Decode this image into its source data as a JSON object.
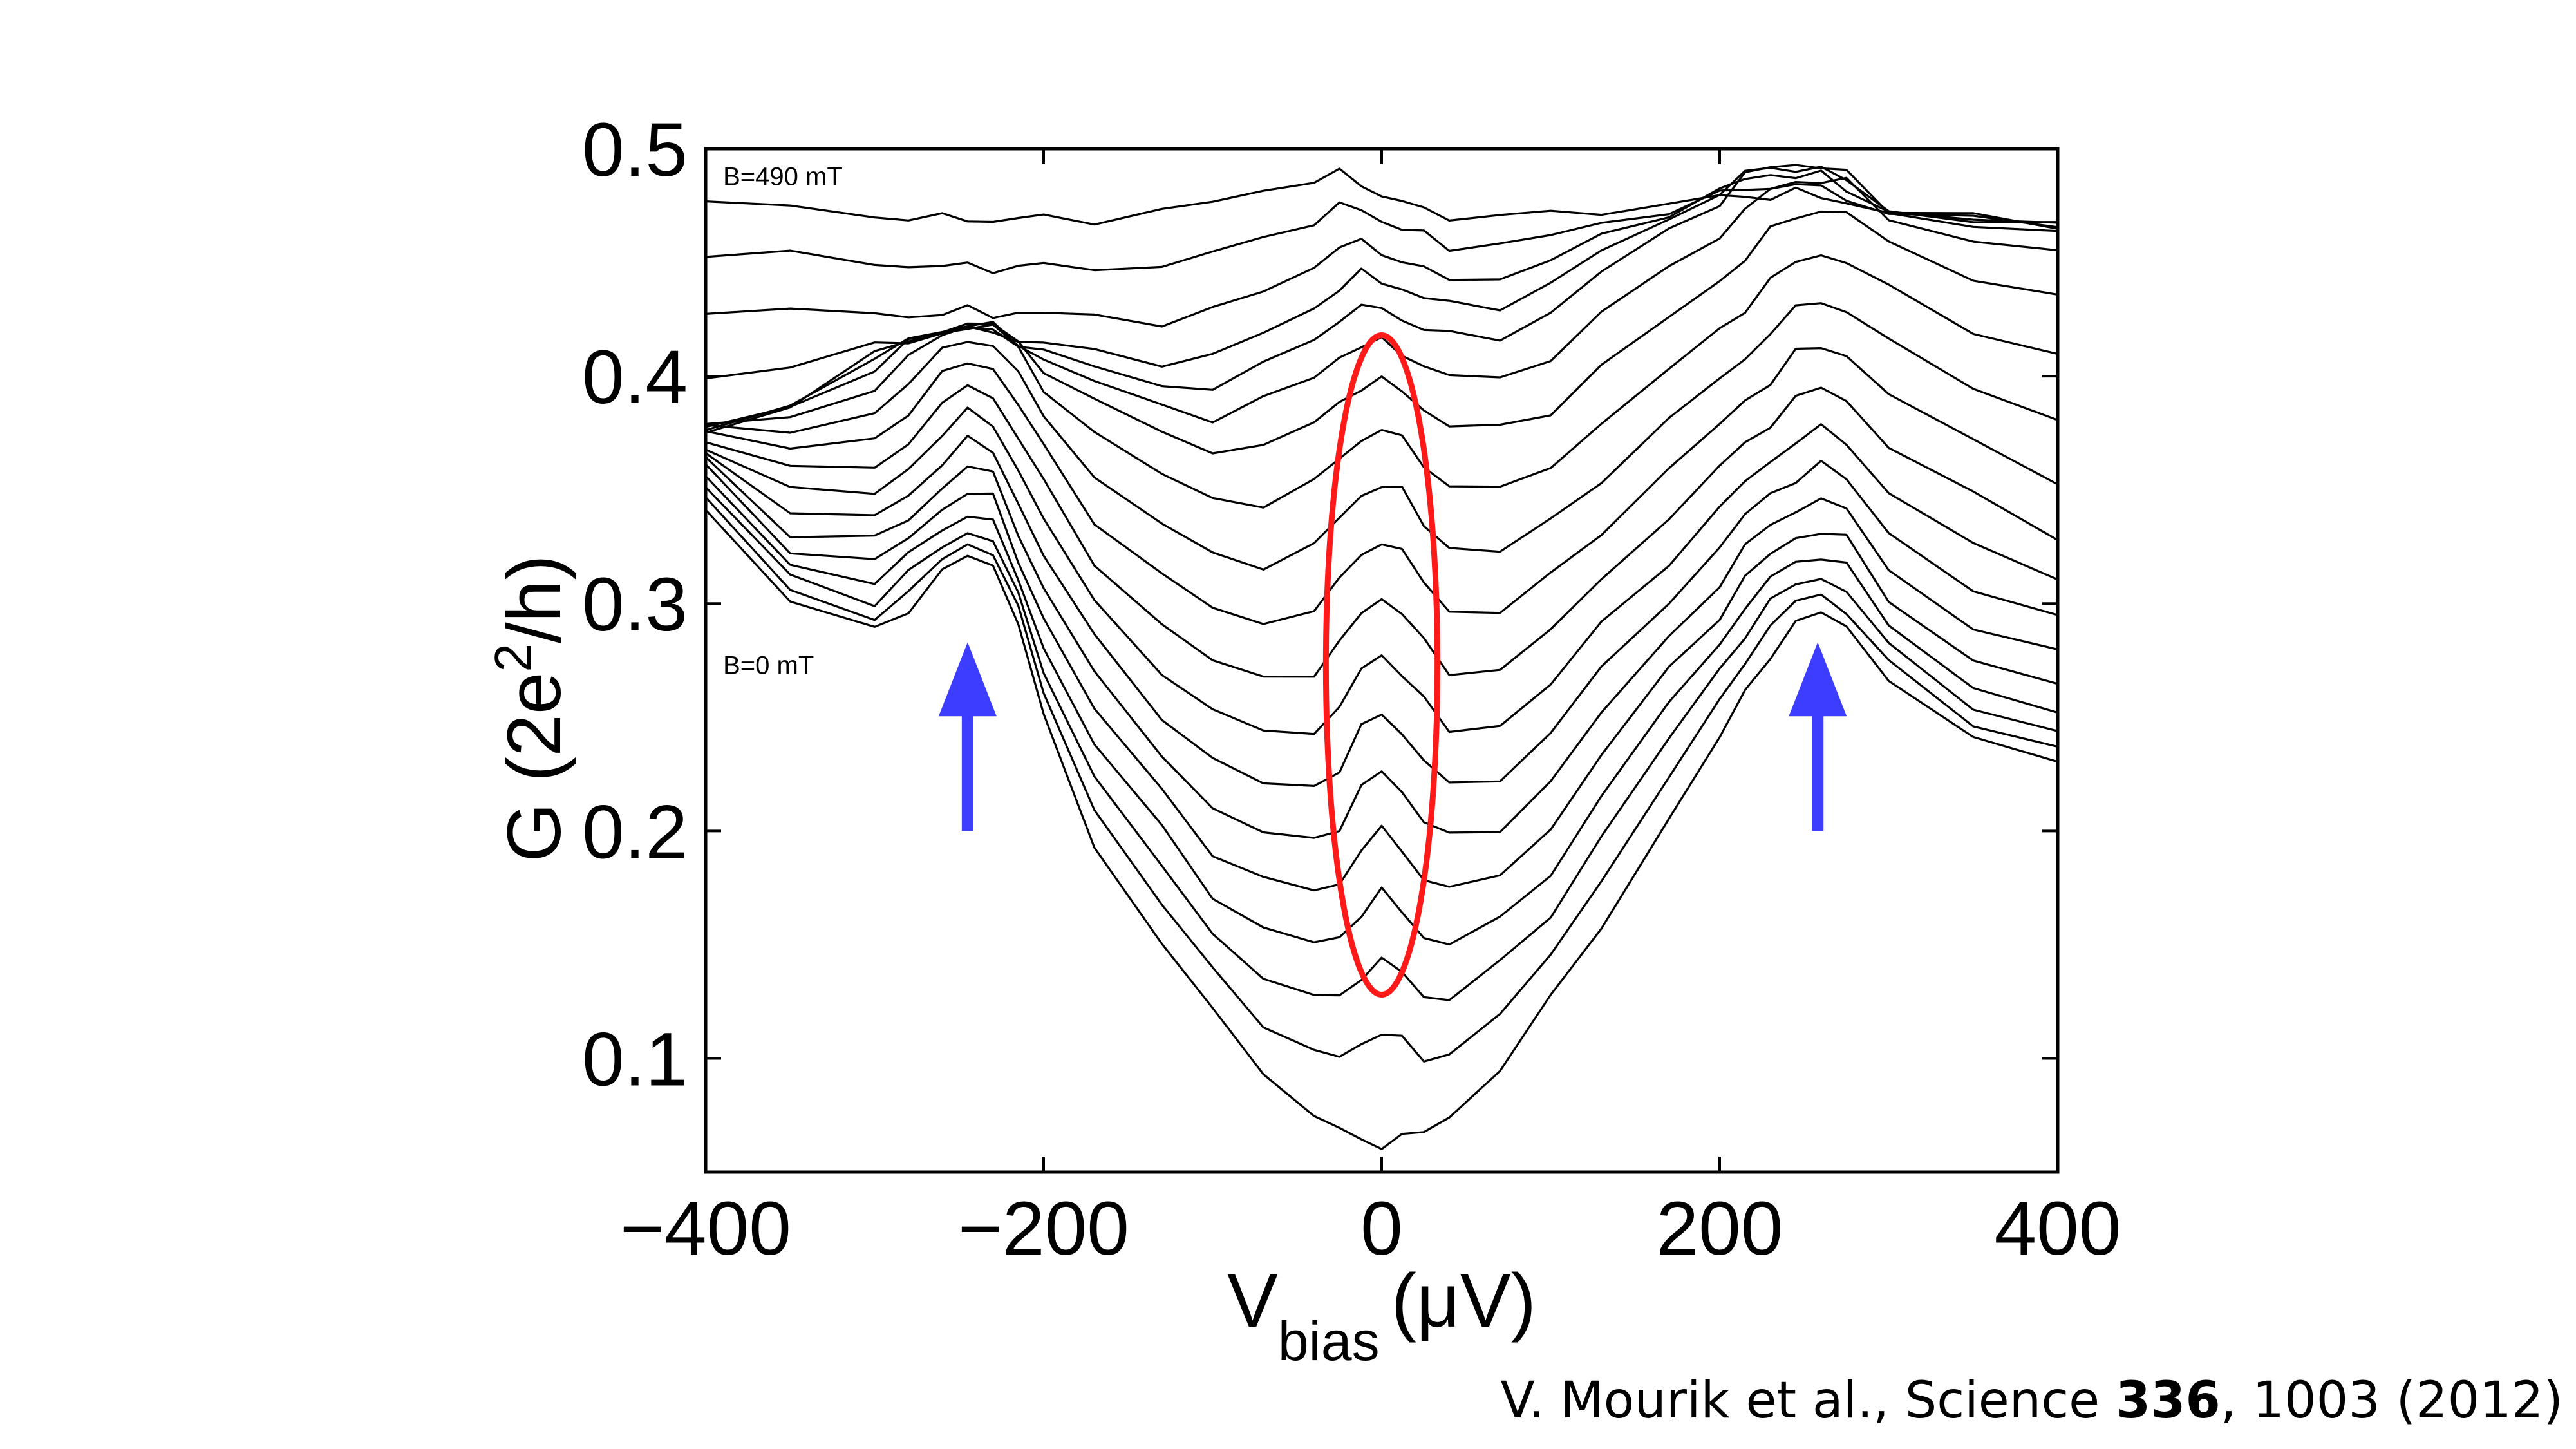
{
  "chart_data": {
    "type": "line",
    "title": "",
    "xlabel": "V",
    "xlabel_sub": "bias",
    "xlabel_unit": "(μV)",
    "ylabel_pre": "G (2e",
    "ylabel_sup": "2",
    "ylabel_post": "/h)",
    "xlim": [
      -400,
      400
    ],
    "ylim": [
      0.05,
      0.5
    ],
    "xticks": [
      -400,
      -200,
      0,
      200,
      400
    ],
    "xtick_labels": [
      "−400",
      "−200",
      "0",
      "200",
      "400"
    ],
    "yticks": [
      0.1,
      0.2,
      0.3,
      0.4,
      0.5
    ],
    "ytick_labels": [
      "0.1",
      "0.2",
      "0.3",
      "0.4",
      "0.5"
    ],
    "grid": false,
    "line_color": "#000000",
    "x": [
      -400,
      -350,
      -300,
      -280,
      -260,
      -245,
      -230,
      -215,
      -200,
      -170,
      -130,
      -100,
      -70,
      -40,
      -25,
      -12,
      0,
      12,
      25,
      40,
      70,
      100,
      130,
      170,
      200,
      215,
      230,
      245,
      260,
      275,
      300,
      350,
      400
    ],
    "series": [
      {
        "values": [
          0.34,
          0.3,
          0.29,
          0.298,
          0.312,
          0.322,
          0.318,
          0.29,
          0.25,
          0.195,
          0.15,
          0.12,
          0.095,
          0.075,
          0.068,
          0.064,
          0.063,
          0.064,
          0.068,
          0.075,
          0.095,
          0.125,
          0.16,
          0.205,
          0.24,
          0.262,
          0.278,
          0.29,
          0.296,
          0.292,
          0.265,
          0.24,
          0.232
        ]
      },
      {
        "values": [
          0.345,
          0.305,
          0.295,
          0.305,
          0.318,
          0.327,
          0.323,
          0.296,
          0.262,
          0.21,
          0.167,
          0.138,
          0.117,
          0.102,
          0.1,
          0.107,
          0.112,
          0.107,
          0.1,
          0.103,
          0.118,
          0.145,
          0.18,
          0.223,
          0.256,
          0.276,
          0.29,
          0.3,
          0.304,
          0.298,
          0.272,
          0.247,
          0.238
        ]
      },
      {
        "values": [
          0.35,
          0.312,
          0.302,
          0.312,
          0.325,
          0.332,
          0.328,
          0.302,
          0.272,
          0.224,
          0.183,
          0.155,
          0.137,
          0.126,
          0.127,
          0.137,
          0.143,
          0.137,
          0.128,
          0.127,
          0.14,
          0.164,
          0.198,
          0.24,
          0.27,
          0.288,
          0.3,
          0.308,
          0.312,
          0.306,
          0.28,
          0.255,
          0.245
        ]
      },
      {
        "values": [
          0.355,
          0.318,
          0.31,
          0.32,
          0.333,
          0.34,
          0.335,
          0.31,
          0.282,
          0.238,
          0.2,
          0.173,
          0.157,
          0.15,
          0.153,
          0.165,
          0.172,
          0.165,
          0.154,
          0.15,
          0.16,
          0.183,
          0.215,
          0.255,
          0.283,
          0.299,
          0.31,
          0.318,
          0.322,
          0.316,
          0.29,
          0.264,
          0.253
        ]
      },
      {
        "values": [
          0.36,
          0.325,
          0.318,
          0.328,
          0.342,
          0.35,
          0.345,
          0.32,
          0.294,
          0.253,
          0.217,
          0.192,
          0.178,
          0.173,
          0.178,
          0.192,
          0.2,
          0.192,
          0.18,
          0.173,
          0.181,
          0.202,
          0.233,
          0.27,
          0.296,
          0.311,
          0.321,
          0.329,
          0.333,
          0.327,
          0.302,
          0.276,
          0.264
        ]
      },
      {
        "values": [
          0.364,
          0.332,
          0.327,
          0.337,
          0.352,
          0.36,
          0.356,
          0.332,
          0.307,
          0.268,
          0.234,
          0.211,
          0.198,
          0.196,
          0.203,
          0.218,
          0.226,
          0.218,
          0.205,
          0.196,
          0.202,
          0.222,
          0.251,
          0.285,
          0.31,
          0.324,
          0.334,
          0.342,
          0.346,
          0.34,
          0.316,
          0.29,
          0.277
        ]
      },
      {
        "values": [
          0.368,
          0.34,
          0.337,
          0.348,
          0.363,
          0.371,
          0.367,
          0.345,
          0.321,
          0.284,
          0.252,
          0.231,
          0.22,
          0.22,
          0.228,
          0.244,
          0.252,
          0.244,
          0.23,
          0.22,
          0.224,
          0.243,
          0.27,
          0.302,
          0.325,
          0.338,
          0.348,
          0.356,
          0.36,
          0.355,
          0.332,
          0.306,
          0.292
        ]
      },
      {
        "values": [
          0.371,
          0.349,
          0.348,
          0.36,
          0.375,
          0.383,
          0.38,
          0.359,
          0.336,
          0.301,
          0.271,
          0.252,
          0.243,
          0.245,
          0.254,
          0.27,
          0.278,
          0.27,
          0.256,
          0.245,
          0.247,
          0.264,
          0.29,
          0.32,
          0.341,
          0.353,
          0.363,
          0.372,
          0.376,
          0.371,
          0.35,
          0.325,
          0.31
        ]
      },
      {
        "values": [
          0.373,
          0.358,
          0.36,
          0.372,
          0.387,
          0.395,
          0.392,
          0.373,
          0.352,
          0.319,
          0.291,
          0.274,
          0.267,
          0.271,
          0.281,
          0.296,
          0.303,
          0.296,
          0.282,
          0.271,
          0.271,
          0.287,
          0.311,
          0.339,
          0.359,
          0.37,
          0.38,
          0.39,
          0.394,
          0.39,
          0.37,
          0.346,
          0.33
        ]
      },
      {
        "values": [
          0.375,
          0.367,
          0.373,
          0.385,
          0.399,
          0.407,
          0.404,
          0.387,
          0.368,
          0.338,
          0.312,
          0.297,
          0.292,
          0.298,
          0.309,
          0.322,
          0.328,
          0.322,
          0.309,
          0.298,
          0.296,
          0.311,
          0.333,
          0.359,
          0.378,
          0.389,
          0.399,
          0.409,
          0.413,
          0.41,
          0.392,
          0.37,
          0.355
        ]
      },
      {
        "values": [
          0.376,
          0.375,
          0.385,
          0.397,
          0.41,
          0.417,
          0.414,
          0.4,
          0.383,
          0.357,
          0.334,
          0.321,
          0.318,
          0.325,
          0.337,
          0.348,
          0.353,
          0.348,
          0.336,
          0.325,
          0.322,
          0.336,
          0.356,
          0.38,
          0.398,
          0.409,
          0.419,
          0.429,
          0.433,
          0.43,
          0.414,
          0.395,
          0.382
        ]
      },
      {
        "values": [
          0.377,
          0.382,
          0.396,
          0.407,
          0.418,
          0.423,
          0.421,
          0.41,
          0.396,
          0.375,
          0.356,
          0.346,
          0.345,
          0.352,
          0.364,
          0.373,
          0.376,
          0.372,
          0.362,
          0.352,
          0.349,
          0.361,
          0.38,
          0.402,
          0.42,
          0.431,
          0.441,
          0.45,
          0.454,
          0.451,
          0.437,
          0.421,
          0.41
        ]
      },
      {
        "values": [
          0.377,
          0.387,
          0.404,
          0.413,
          0.421,
          0.424,
          0.422,
          0.414,
          0.404,
          0.389,
          0.374,
          0.368,
          0.37,
          0.378,
          0.389,
          0.396,
          0.397,
          0.394,
          0.386,
          0.378,
          0.376,
          0.386,
          0.404,
          0.425,
          0.442,
          0.453,
          0.463,
          0.47,
          0.474,
          0.471,
          0.458,
          0.444,
          0.436
        ]
      },
      {
        "values": [
          0.376,
          0.389,
          0.407,
          0.415,
          0.421,
          0.423,
          0.421,
          0.415,
          0.408,
          0.397,
          0.386,
          0.383,
          0.389,
          0.399,
          0.409,
          0.414,
          0.414,
          0.411,
          0.405,
          0.399,
          0.399,
          0.409,
          0.427,
          0.447,
          0.463,
          0.473,
          0.481,
          0.486,
          0.487,
          0.484,
          0.47,
          0.46,
          0.455
        ]
      },
      {
        "values": [
          0.375,
          0.389,
          0.408,
          0.416,
          0.42,
          0.421,
          0.42,
          0.416,
          0.411,
          0.403,
          0.396,
          0.396,
          0.404,
          0.416,
          0.426,
          0.43,
          0.429,
          0.426,
          0.421,
          0.417,
          0.418,
          0.428,
          0.445,
          0.464,
          0.478,
          0.487,
          0.492,
          0.494,
          0.492,
          0.488,
          0.474,
          0.466,
          0.462
        ]
      },
      {
        "values": [
          0.4,
          0.405,
          0.412,
          0.416,
          0.42,
          0.42,
          0.419,
          0.417,
          0.414,
          0.41,
          0.407,
          0.409,
          0.418,
          0.43,
          0.44,
          0.444,
          0.442,
          0.439,
          0.434,
          0.431,
          0.432,
          0.44,
          0.454,
          0.47,
          0.481,
          0.488,
          0.492,
          0.492,
          0.49,
          0.486,
          0.474,
          0.468,
          0.465
        ]
      },
      {
        "values": [
          0.43,
          0.428,
          0.427,
          0.427,
          0.428,
          0.428,
          0.428,
          0.428,
          0.427,
          0.426,
          0.425,
          0.428,
          0.437,
          0.449,
          0.457,
          0.458,
          0.455,
          0.451,
          0.446,
          0.443,
          0.444,
          0.45,
          0.461,
          0.473,
          0.481,
          0.486,
          0.489,
          0.489,
          0.487,
          0.483,
          0.473,
          0.468,
          0.466
        ]
      },
      {
        "values": [
          0.455,
          0.452,
          0.45,
          0.449,
          0.448,
          0.448,
          0.448,
          0.448,
          0.448,
          0.448,
          0.449,
          0.453,
          0.461,
          0.469,
          0.474,
          0.473,
          0.469,
          0.465,
          0.461,
          0.458,
          0.458,
          0.461,
          0.467,
          0.474,
          0.479,
          0.482,
          0.484,
          0.484,
          0.482,
          0.479,
          0.472,
          0.468,
          0.467
        ]
      },
      {
        "values": [
          0.477,
          0.473,
          0.471,
          0.47,
          0.469,
          0.469,
          0.469,
          0.469,
          0.469,
          0.47,
          0.472,
          0.476,
          0.482,
          0.487,
          0.488,
          0.485,
          0.48,
          0.476,
          0.473,
          0.471,
          0.47,
          0.471,
          0.473,
          0.476,
          0.478,
          0.479,
          0.48,
          0.48,
          0.479,
          0.477,
          0.472,
          0.469,
          0.468
        ]
      }
    ],
    "annotations": [
      {
        "text": "B=490 mT",
        "x": -395,
        "y": 0.488
      },
      {
        "text": "B=0 mT",
        "x": -395,
        "y": 0.273
      }
    ],
    "highlight_ellipse": {
      "color": "#ff1a1a",
      "cx": 0,
      "cy": 0.273,
      "rx": 33,
      "ry": 0.145
    },
    "arrows": [
      {
        "color": "#3d3dff",
        "x": -245,
        "y_from": 0.2,
        "y_to": 0.283
      },
      {
        "color": "#3d3dff",
        "x": 258,
        "y_from": 0.2,
        "y_to": 0.283
      }
    ]
  },
  "citation": {
    "prefix": "V. Mourik et al., Science ",
    "volume": "336",
    "suffix": ", 1003 (2012)"
  }
}
